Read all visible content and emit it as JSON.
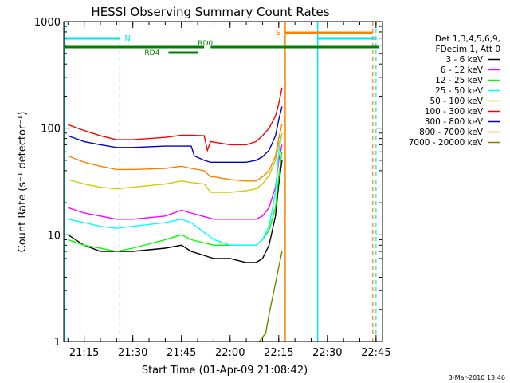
{
  "chart_data": {
    "type": "line",
    "title": "HESSI Observing Summary Count Rates",
    "xlabel": "Start Time (01-Apr-09 21:08:42)",
    "ylabel": "Count Rate (s⁻¹ detector⁻¹)",
    "yscale": "log",
    "ylim": [
      1,
      1000
    ],
    "xlim_minutes": [
      21.15,
      22.78
    ],
    "x_ticks": [
      "21:15",
      "21:30",
      "21:45",
      "22:00",
      "22:15",
      "22:30",
      "22:45"
    ],
    "y_ticks": [
      "1",
      "10",
      "100",
      "1000"
    ],
    "grid": false,
    "legend_position": "right",
    "legend_header": [
      "Det 1,3,4,5,6,9,",
      "FDecim 1, Att 0"
    ],
    "footer_date": "3-Mar-2010 13:46",
    "series": [
      {
        "name": "3 - 6 keV",
        "color": "#000000",
        "x": [
          "21:10",
          "21:15",
          "21:20",
          "21:25",
          "21:30",
          "21:40",
          "21:45",
          "21:48",
          "21:55",
          "22:00",
          "22:05",
          "22:08",
          "22:10",
          "22:12",
          "22:14",
          "22:15",
          "22:16"
        ],
        "y": [
          10,
          8,
          7,
          7,
          7,
          7.5,
          8,
          7,
          6,
          6,
          5.5,
          5.5,
          6,
          8,
          15,
          30,
          50
        ]
      },
      {
        "name": "6 - 12 keV",
        "color": "#ff00ff",
        "x": [
          "21:10",
          "21:15",
          "21:20",
          "21:25",
          "21:30",
          "21:40",
          "21:45",
          "21:48",
          "21:55",
          "22:00",
          "22:05",
          "22:08",
          "22:10",
          "22:12",
          "22:14",
          "22:15",
          "22:16"
        ],
        "y": [
          18,
          16,
          15,
          14,
          14,
          15,
          17,
          16,
          14,
          14,
          14,
          14,
          15,
          18,
          28,
          50,
          70
        ]
      },
      {
        "name": "12 - 25 keV",
        "color": "#00ff00",
        "x": [
          "21:10",
          "21:15",
          "21:20",
          "21:25",
          "21:30",
          "21:40",
          "21:45",
          "21:48",
          "21:55",
          "22:00",
          "22:05",
          "22:08",
          "22:10",
          "22:12",
          "22:14",
          "22:15",
          "22:16"
        ],
        "y": [
          9,
          8,
          7.5,
          7,
          7.5,
          9,
          10,
          9,
          8,
          8,
          8,
          8,
          9,
          11,
          18,
          35,
          60
        ]
      },
      {
        "name": "25 - 50 keV",
        "color": "#00ffff",
        "x": [
          "21:10",
          "21:15",
          "21:20",
          "21:25",
          "21:30",
          "21:40",
          "21:45",
          "21:48",
          "21:55",
          "22:00",
          "22:05",
          "22:08",
          "22:10",
          "22:12",
          "22:14",
          "22:15",
          "22:16"
        ],
        "y": [
          14,
          13,
          12,
          11.5,
          12,
          13,
          14,
          13,
          9,
          8,
          8,
          8,
          9,
          12,
          25,
          60,
          90
        ]
      },
      {
        "name": "50 - 100 keV",
        "color": "#cccc00",
        "x": [
          "21:10",
          "21:15",
          "21:20",
          "21:25",
          "21:30",
          "21:40",
          "21:45",
          "21:48",
          "21:52",
          "21:54",
          "21:55",
          "22:00",
          "22:05",
          "22:08",
          "22:10",
          "22:12",
          "22:14",
          "22:15",
          "22:16"
        ],
        "y": [
          33,
          30,
          28,
          27,
          28,
          30,
          32,
          31,
          30,
          25,
          25,
          25,
          26,
          27,
          30,
          36,
          50,
          70,
          90
        ]
      },
      {
        "name": "100 - 300 keV",
        "color": "#ff0000",
        "x": [
          "21:10",
          "21:15",
          "21:20",
          "21:25",
          "21:30",
          "21:40",
          "21:45",
          "21:48",
          "21:52",
          "21:53",
          "21:54",
          "22:00",
          "22:05",
          "22:08",
          "22:10",
          "22:12",
          "22:14",
          "22:15",
          "22:16"
        ],
        "y": [
          108,
          95,
          85,
          78,
          78,
          82,
          86,
          86,
          85,
          62,
          75,
          70,
          70,
          75,
          85,
          100,
          130,
          170,
          240
        ]
      },
      {
        "name": "300 - 800 keV",
        "color": "#0000cc",
        "x": [
          "21:10",
          "21:15",
          "21:20",
          "21:25",
          "21:30",
          "21:40",
          "21:45",
          "21:48",
          "21:49",
          "21:52",
          "21:54",
          "22:00",
          "22:05",
          "22:08",
          "22:10",
          "22:12",
          "22:14",
          "22:15",
          "22:16"
        ],
        "y": [
          85,
          75,
          70,
          66,
          66,
          68,
          68,
          68,
          55,
          50,
          48,
          48,
          48,
          50,
          54,
          62,
          85,
          120,
          160
        ]
      },
      {
        "name": "800 - 7000 keV",
        "color": "#ff8000",
        "x": [
          "21:10",
          "21:15",
          "21:20",
          "21:25",
          "21:30",
          "21:40",
          "21:45",
          "21:48",
          "21:52",
          "21:54",
          "21:55",
          "22:00",
          "22:05",
          "22:08",
          "22:10",
          "22:12",
          "22:14",
          "22:15",
          "22:16"
        ],
        "y": [
          55,
          48,
          44,
          41,
          41,
          42,
          44,
          42,
          40,
          35,
          35,
          33,
          32,
          32,
          35,
          40,
          55,
          80,
          110
        ]
      },
      {
        "name": "7000 - 20000 keV",
        "color": "#808000",
        "x": [
          "22:09",
          "22:11",
          "22:12",
          "22:13",
          "22:14",
          "22:15",
          "22:16"
        ],
        "y": [
          1,
          1.2,
          1.8,
          2.5,
          3.5,
          5,
          7
        ]
      }
    ],
    "markers": {
      "cyan_solid_times": [
        "21:09",
        "22:27"
      ],
      "cyan_dashed_times": [
        "21:26",
        "22:45"
      ],
      "orange_solid_times": [
        "22:17"
      ],
      "orange_dashed_times": [
        "22:44"
      ],
      "night_bars": [
        [
          "21:09",
          "21:26"
        ],
        [
          "22:27",
          "22:45"
        ]
      ],
      "night_label": "N",
      "saa_bars": [
        [
          "22:17",
          "22:44"
        ]
      ],
      "saa_label": "S",
      "rd0_bars": [
        [
          "21:09",
          "21:52"
        ],
        [
          "21:54",
          "22:46"
        ]
      ],
      "rd0_label": "RD0",
      "rd4_bars": [
        [
          "21:41",
          "21:50"
        ]
      ],
      "rd4_label": "RD4"
    }
  }
}
